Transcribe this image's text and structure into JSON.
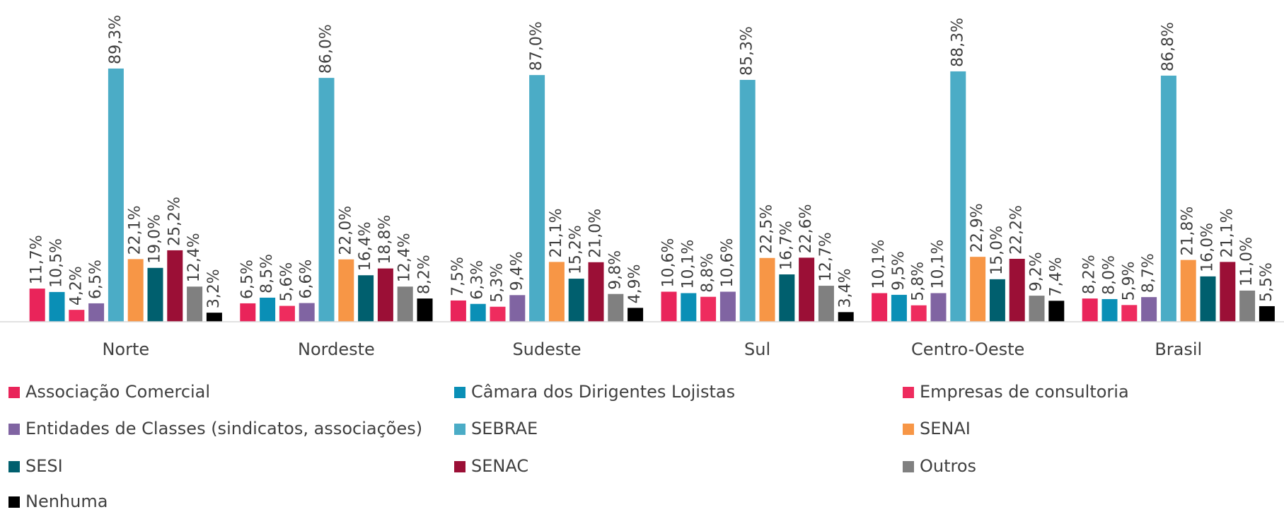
{
  "chart_data": {
    "type": "bar",
    "categories": [
      "Norte",
      "Nordeste",
      "Sudeste",
      "Sul",
      "Centro-Oeste",
      "Brasil"
    ],
    "ylim": [
      0,
      100
    ],
    "series": [
      {
        "name": "Associação Comercial",
        "color": "#e9245a",
        "values": [
          11.7,
          6.5,
          7.5,
          10.6,
          10.1,
          8.2
        ],
        "value_labels": [
          "11,7%",
          "6,5%",
          "7,5%",
          "10,6%",
          "10,1%",
          "8,2%"
        ]
      },
      {
        "name": "Câmara dos Dirigentes Lojistas",
        "color": "#0a8fb6",
        "values": [
          10.5,
          8.5,
          6.3,
          10.1,
          9.5,
          8.0
        ],
        "value_labels": [
          "10,5%",
          "8,5%",
          "6,3%",
          "10,1%",
          "9,5%",
          "8,0%"
        ]
      },
      {
        "name": "Empresas de consultoria",
        "color": "#ee2c5e",
        "values": [
          4.2,
          5.6,
          5.3,
          8.8,
          5.8,
          5.9
        ],
        "value_labels": [
          "4,2%",
          "5,6%",
          "5,3%",
          "8,8%",
          "5,8%",
          "5,9%"
        ]
      },
      {
        "name": "Entidades de Classes (sindicatos, associações)",
        "color": "#8064a2",
        "values": [
          6.5,
          6.6,
          9.4,
          10.6,
          10.1,
          8.7
        ],
        "value_labels": [
          "6,5%",
          "6,6%",
          "9,4%",
          "10,6%",
          "10,1%",
          "8,7%"
        ]
      },
      {
        "name": "SEBRAE",
        "color": "#4bacc6",
        "values": [
          89.3,
          86.0,
          87.0,
          85.3,
          88.3,
          86.8
        ],
        "value_labels": [
          "89,3%",
          "86,0%",
          "87,0%",
          "85,3%",
          "88,3%",
          "86,8%"
        ]
      },
      {
        "name": "SENAI",
        "color": "#f79646",
        "values": [
          22.1,
          22.0,
          21.1,
          22.5,
          22.9,
          21.8
        ],
        "value_labels": [
          "22,1%",
          "22,0%",
          "21,1%",
          "22,5%",
          "22,9%",
          "21,8%"
        ]
      },
      {
        "name": "SESI",
        "color": "#005f6e",
        "values": [
          19.0,
          16.4,
          15.2,
          16.7,
          15.0,
          16.0
        ],
        "value_labels": [
          "19,0%",
          "16,4%",
          "15,2%",
          "16,7%",
          "15,0%",
          "16,0%"
        ]
      },
      {
        "name": "SENAC",
        "color": "#9b0f36",
        "values": [
          25.2,
          18.8,
          21.0,
          22.6,
          22.2,
          21.1
        ],
        "value_labels": [
          "25,2%",
          "18,8%",
          "21,0%",
          "22,6%",
          "22,2%",
          "21,1%"
        ]
      },
      {
        "name": "Outros",
        "color": "#808080",
        "values": [
          12.4,
          12.4,
          9.8,
          12.7,
          9.2,
          11.0
        ],
        "value_labels": [
          "12,4%",
          "12,4%",
          "9,8%",
          "12,7%",
          "9,2%",
          "11,0%"
        ]
      },
      {
        "name": "Nenhuma",
        "color": "#000000",
        "values": [
          3.2,
          8.2,
          4.9,
          3.4,
          7.4,
          5.5
        ],
        "value_labels": [
          "3,2%",
          "8,2%",
          "4,9%",
          "3,4%",
          "7,4%",
          "5,5%"
        ]
      }
    ],
    "legend": "bottom"
  }
}
